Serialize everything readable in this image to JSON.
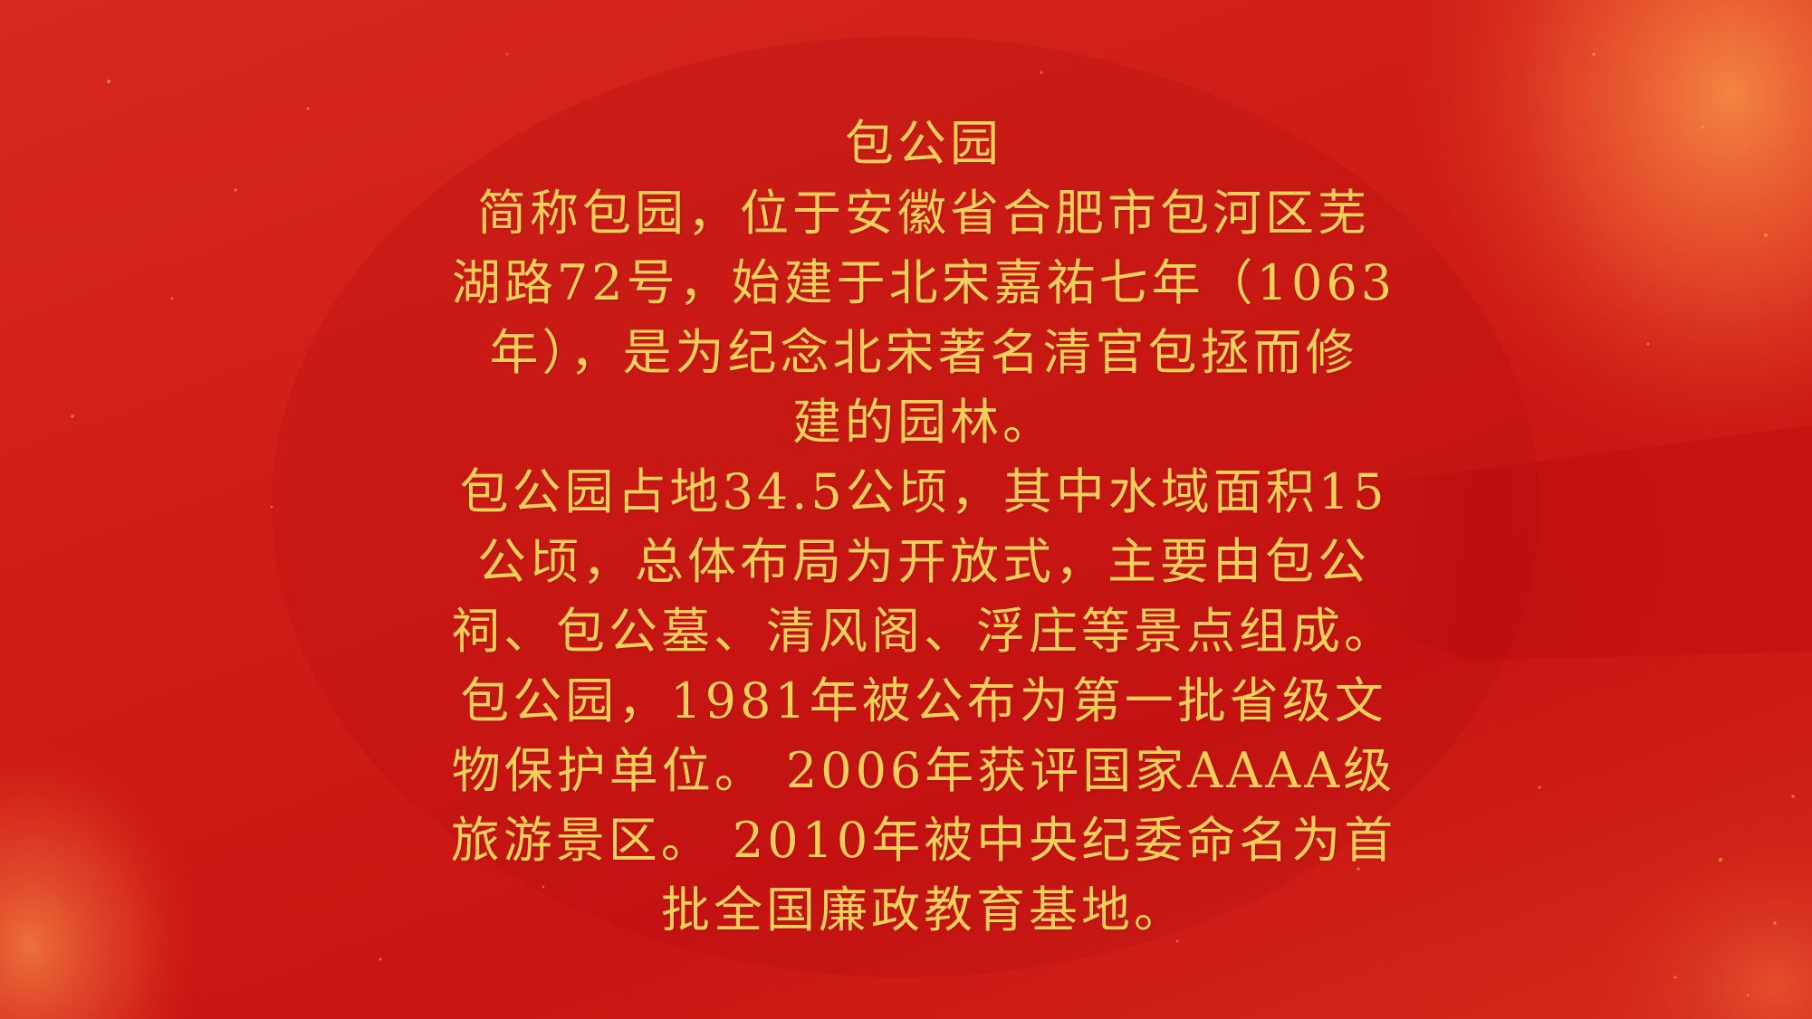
{
  "colors": {
    "background": "#cf1d16",
    "text": "#f6cf5a",
    "brush_highlight": "#f07a3c"
  },
  "content": {
    "title": "包公园",
    "lines": [
      "简称包园，位于安徽省合肥市包河区芜",
      "湖路72号，始建于北宋嘉祐七年（1063",
      "年），是为纪念北宋著名清官包拯而修",
      "建的园林。",
      "包公园占地34.5公顷，其中水域面积15",
      "公顷，总体布局为开放式，主要由包公",
      "祠、包公墓、清风阁、浮庄等景点组成。",
      "包公园，1981年被公布为第一批省级文",
      "物保护单位。 2006年获评国家AAAA级",
      "旅游景区。 2010年被中央纪委命名为首",
      "批全国廉政教育基地。"
    ]
  }
}
